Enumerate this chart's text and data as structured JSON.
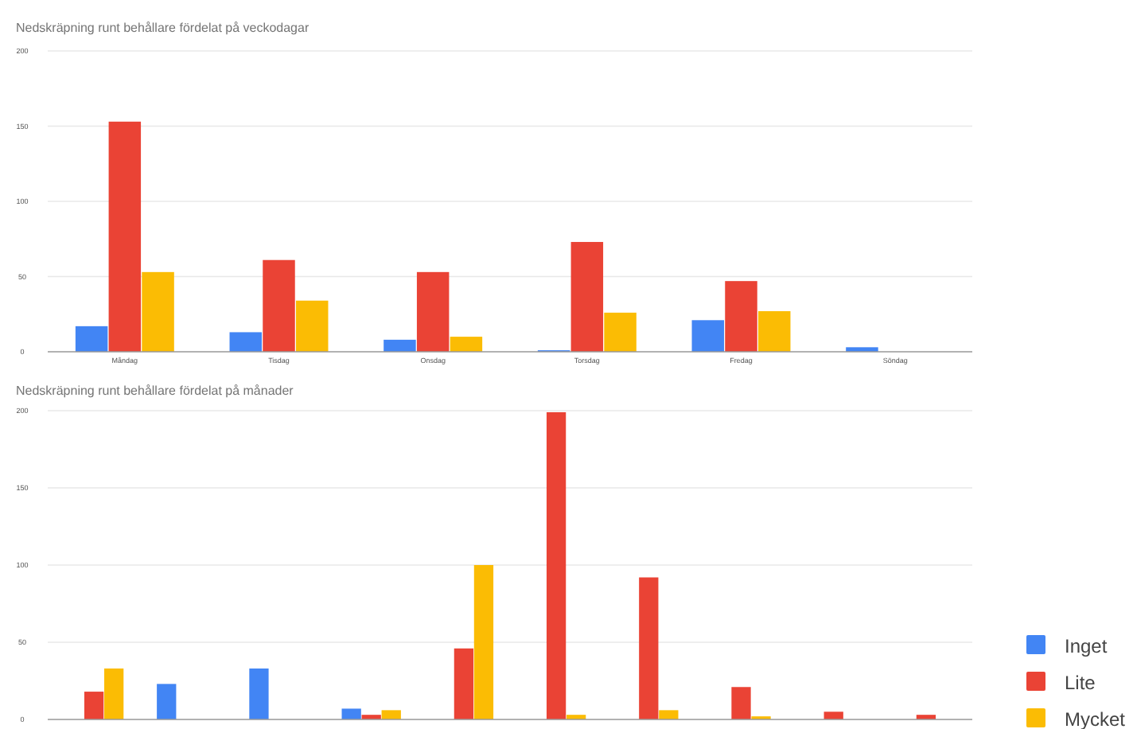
{
  "chart_data": [
    {
      "type": "bar",
      "title": "Nedskräpning runt behållare fördelat på veckodagar",
      "categories": [
        "Måndag",
        "Tisdag",
        "Onsdag",
        "Torsdag",
        "Fredag",
        "Söndag"
      ],
      "series": [
        {
          "color": "#4285f4",
          "values": [
            17,
            13,
            8,
            1,
            21,
            3
          ]
        },
        {
          "color": "#ea4335",
          "values": [
            153,
            61,
            53,
            73,
            47,
            0
          ]
        },
        {
          "color": "#fbbc04",
          "values": [
            53,
            34,
            10,
            26,
            27,
            0
          ]
        }
      ],
      "ylim": [
        0,
        200
      ],
      "yticks": [
        0,
        50,
        100,
        150,
        200
      ],
      "grid": "y",
      "legend": false
    },
    {
      "type": "bar",
      "title": "Nedskräpning runt behållare fördelat på månader",
      "categories": [
        null,
        null,
        null,
        null,
        null,
        null,
        null,
        null,
        null,
        null
      ],
      "series": [
        {
          "name": "Inget",
          "color": "#4285f4",
          "values": [
            0,
            23,
            33,
            7,
            0,
            0,
            0,
            0,
            0,
            0
          ]
        },
        {
          "name": "Lite",
          "color": "#ea4335",
          "values": [
            18,
            0,
            0,
            3,
            46,
            199,
            92,
            21,
            5,
            3
          ]
        },
        {
          "name": "Mycket",
          "color": "#fbbc04",
          "values": [
            33,
            0,
            0,
            6,
            100,
            3,
            6,
            2,
            0,
            0
          ]
        }
      ],
      "ylim": [
        0,
        200
      ],
      "yticks": [
        0,
        50,
        100,
        150,
        200
      ],
      "grid": "y",
      "legend": "bottom right"
    }
  ]
}
